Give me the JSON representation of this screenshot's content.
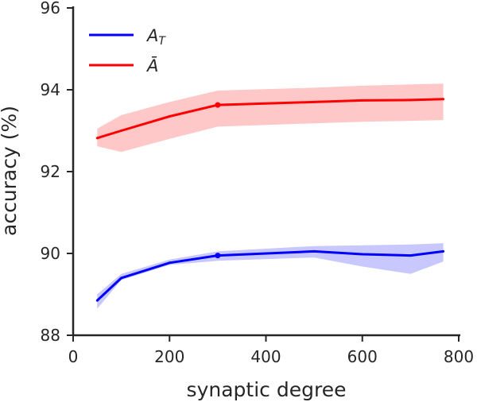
{
  "chart_data": {
    "type": "line",
    "title": "",
    "xlabel": "synaptic degree",
    "ylabel": "accuracy (%)",
    "xlim": [
      0,
      800
    ],
    "ylim": [
      88,
      96
    ],
    "xticks": [
      0,
      200,
      400,
      600,
      800
    ],
    "yticks": [
      88,
      90,
      92,
      94,
      96
    ],
    "grid": false,
    "legend_position": "top-left",
    "series": [
      {
        "name": "A_T",
        "legend_base": "A",
        "legend_sub": "T",
        "color": "#0000ff",
        "band_color": "#c8c8ff",
        "x": [
          50,
          100,
          200,
          300,
          500,
          600,
          700,
          768
        ],
        "y": [
          88.85,
          89.4,
          89.77,
          89.95,
          90.05,
          89.98,
          89.95,
          90.05
        ],
        "lower": [
          88.65,
          89.35,
          89.72,
          89.82,
          89.9,
          89.68,
          89.5,
          89.8
        ],
        "upper": [
          89.0,
          89.5,
          89.85,
          90.05,
          90.18,
          90.2,
          90.22,
          90.25
        ],
        "marked_x": [
          300
        ]
      },
      {
        "name": "Ā",
        "legend_base": "Ā",
        "legend_sub": "",
        "color": "#ff0000",
        "band_color": "#ffc8c8",
        "x": [
          50,
          100,
          200,
          300,
          500,
          600,
          700,
          768
        ],
        "y": [
          92.82,
          93.0,
          93.35,
          93.63,
          93.7,
          93.74,
          93.75,
          93.77
        ],
        "lower": [
          92.62,
          92.48,
          92.8,
          93.1,
          93.18,
          93.22,
          93.24,
          93.26
        ],
        "upper": [
          93.05,
          93.38,
          93.7,
          93.98,
          94.05,
          94.1,
          94.13,
          94.15
        ],
        "marked_x": [
          300
        ]
      }
    ]
  }
}
